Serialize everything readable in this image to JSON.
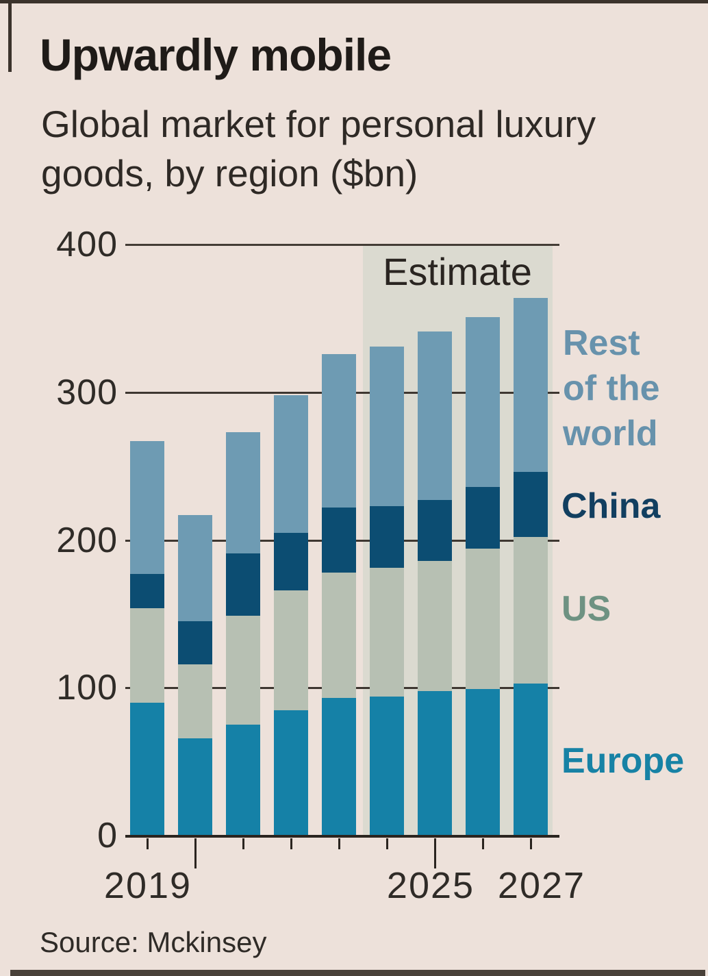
{
  "page": {
    "title": "Upwardly mobile",
    "subtitle": "Global market for personal luxury\ngoods, by region ($bn)",
    "estimate_label": "Estimate",
    "source": "Source: Mckinsey"
  },
  "legend": {
    "rest_of_the_world": "Rest\nof the\nworld",
    "china": "China",
    "us": "US",
    "europe": "Europe"
  },
  "colors": {
    "background": "#EDE1DA",
    "estimate_panel": "#DBDAD0",
    "europe": "#1581A7",
    "us": "#B7C0B3",
    "china": "#0C4D72",
    "rest_of_world": "#6E9BB3",
    "gridline": "#3E3731",
    "axis": "#2A241F",
    "legend_rest_of_world_text": "#6792AC",
    "legend_china_text": "#123F60",
    "legend_us_text": "#6E9282",
    "legend_europe_text": "#1782A5"
  },
  "chart_data": {
    "type": "bar",
    "stacked": true,
    "title": "Upwardly mobile",
    "subtitle": "Global market for personal luxury goods, by region ($bn)",
    "ylabel": "$bn",
    "ylim": [
      0,
      400
    ],
    "y_ticks": [
      400,
      300,
      200,
      100,
      0
    ],
    "grid": true,
    "legend_position": "right",
    "categories": [
      "2019",
      "2020",
      "2021",
      "2022",
      "2023",
      "2024",
      "2025",
      "2026",
      "2027"
    ],
    "x_labels_shown": [
      "2019",
      "2025",
      "2027"
    ],
    "long_tick_categories": [
      "2020",
      "2025"
    ],
    "estimate_from": "2024",
    "series": [
      {
        "name": "Europe",
        "values": [
          90,
          66,
          75,
          85,
          93,
          94,
          98,
          99,
          103
        ]
      },
      {
        "name": "US",
        "values": [
          64,
          50,
          74,
          81,
          85,
          87,
          88,
          95,
          99
        ]
      },
      {
        "name": "China",
        "values": [
          23,
          29,
          42,
          39,
          44,
          42,
          41,
          42,
          44
        ]
      },
      {
        "name": "Rest of the world",
        "values": [
          90,
          72,
          82,
          93,
          104,
          108,
          114,
          115,
          118
        ]
      }
    ],
    "totals": [
      267,
      217,
      273,
      298,
      326,
      331,
      341,
      351,
      364
    ]
  }
}
